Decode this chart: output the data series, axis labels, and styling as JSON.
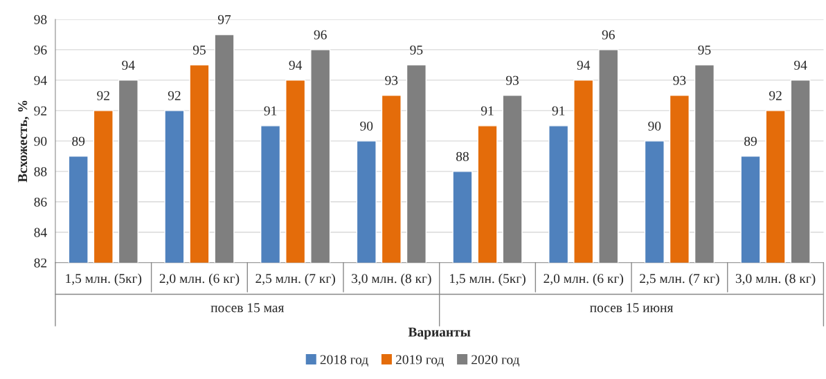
{
  "chart_data": {
    "type": "bar",
    "xlabel": "Варианты",
    "ylabel": "Всхожесть, %",
    "categories": [
      "1,5 млн. (5кг)",
      "2,0 млн. (6 кг)",
      "2,5 млн. (7 кг)",
      "3,0 млн. (8 кг)",
      "1,5 млн. (5кг)",
      "2,0 млн. (6 кг)",
      "2,5 млн. (7 кг)",
      "3,0 млн. (8 кг)"
    ],
    "series": [
      {
        "name": "2018 год",
        "color": "#4f81bd",
        "values": [
          89,
          92,
          91,
          90,
          88,
          91,
          90,
          89
        ]
      },
      {
        "name": "2019 год",
        "color": "#e46c0a",
        "values": [
          92,
          95,
          94,
          93,
          91,
          94,
          93,
          92
        ]
      },
      {
        "name": "2020 год",
        "color": "#7f7f7f",
        "values": [
          94,
          97,
          96,
          95,
          93,
          96,
          95,
          94
        ]
      }
    ],
    "annotations": [
      "посев 15 мая",
      "посев 15 июня"
    ],
    "ylim": [
      82,
      98
    ],
    "yticks": [
      82,
      84,
      86,
      88,
      90,
      92,
      94,
      96,
      98
    ],
    "grid": "y",
    "legend": "bottom",
    "data_labels": true
  }
}
